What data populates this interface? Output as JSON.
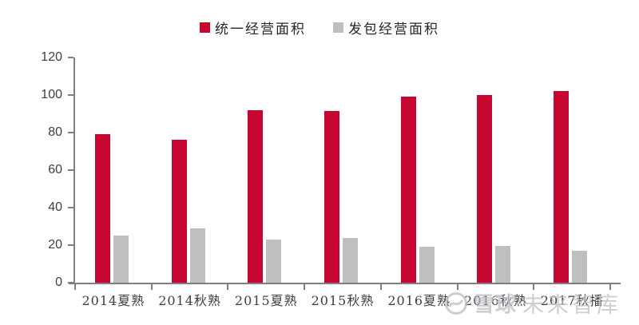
{
  "legend": {
    "items": [
      {
        "label": "统一经营面积",
        "color": "#C5062F"
      },
      {
        "label": "发包经营面积",
        "color": "#BFBFBF"
      }
    ]
  },
  "chart_data": {
    "type": "bar",
    "categories": [
      "2014夏熟",
      "2014秋熟",
      "2015夏熟",
      "2015秋熟",
      "2016夏熟",
      "2016秋熟",
      "2017秋播"
    ],
    "series": [
      {
        "name": "统一经营面积",
        "color": "#C5062F",
        "values": [
          79,
          76,
          92,
          91.5,
          99,
          100,
          102
        ]
      },
      {
        "name": "发包经营面积",
        "color": "#BFBFBF",
        "values": [
          25,
          29,
          23,
          24,
          19,
          19.5,
          17
        ]
      }
    ],
    "ylim": [
      0,
      120
    ],
    "yticks": [
      0,
      20,
      40,
      60,
      80,
      100,
      120
    ],
    "grid": false,
    "legend_position": "top",
    "axis_color": "#7F7F7F",
    "tick_label_color": "#404040"
  },
  "watermark": {
    "logo": "xueqiu-snowball-logo",
    "brand": "雪球",
    "suffix": "未来智库",
    "color": "#C3C3C8"
  }
}
